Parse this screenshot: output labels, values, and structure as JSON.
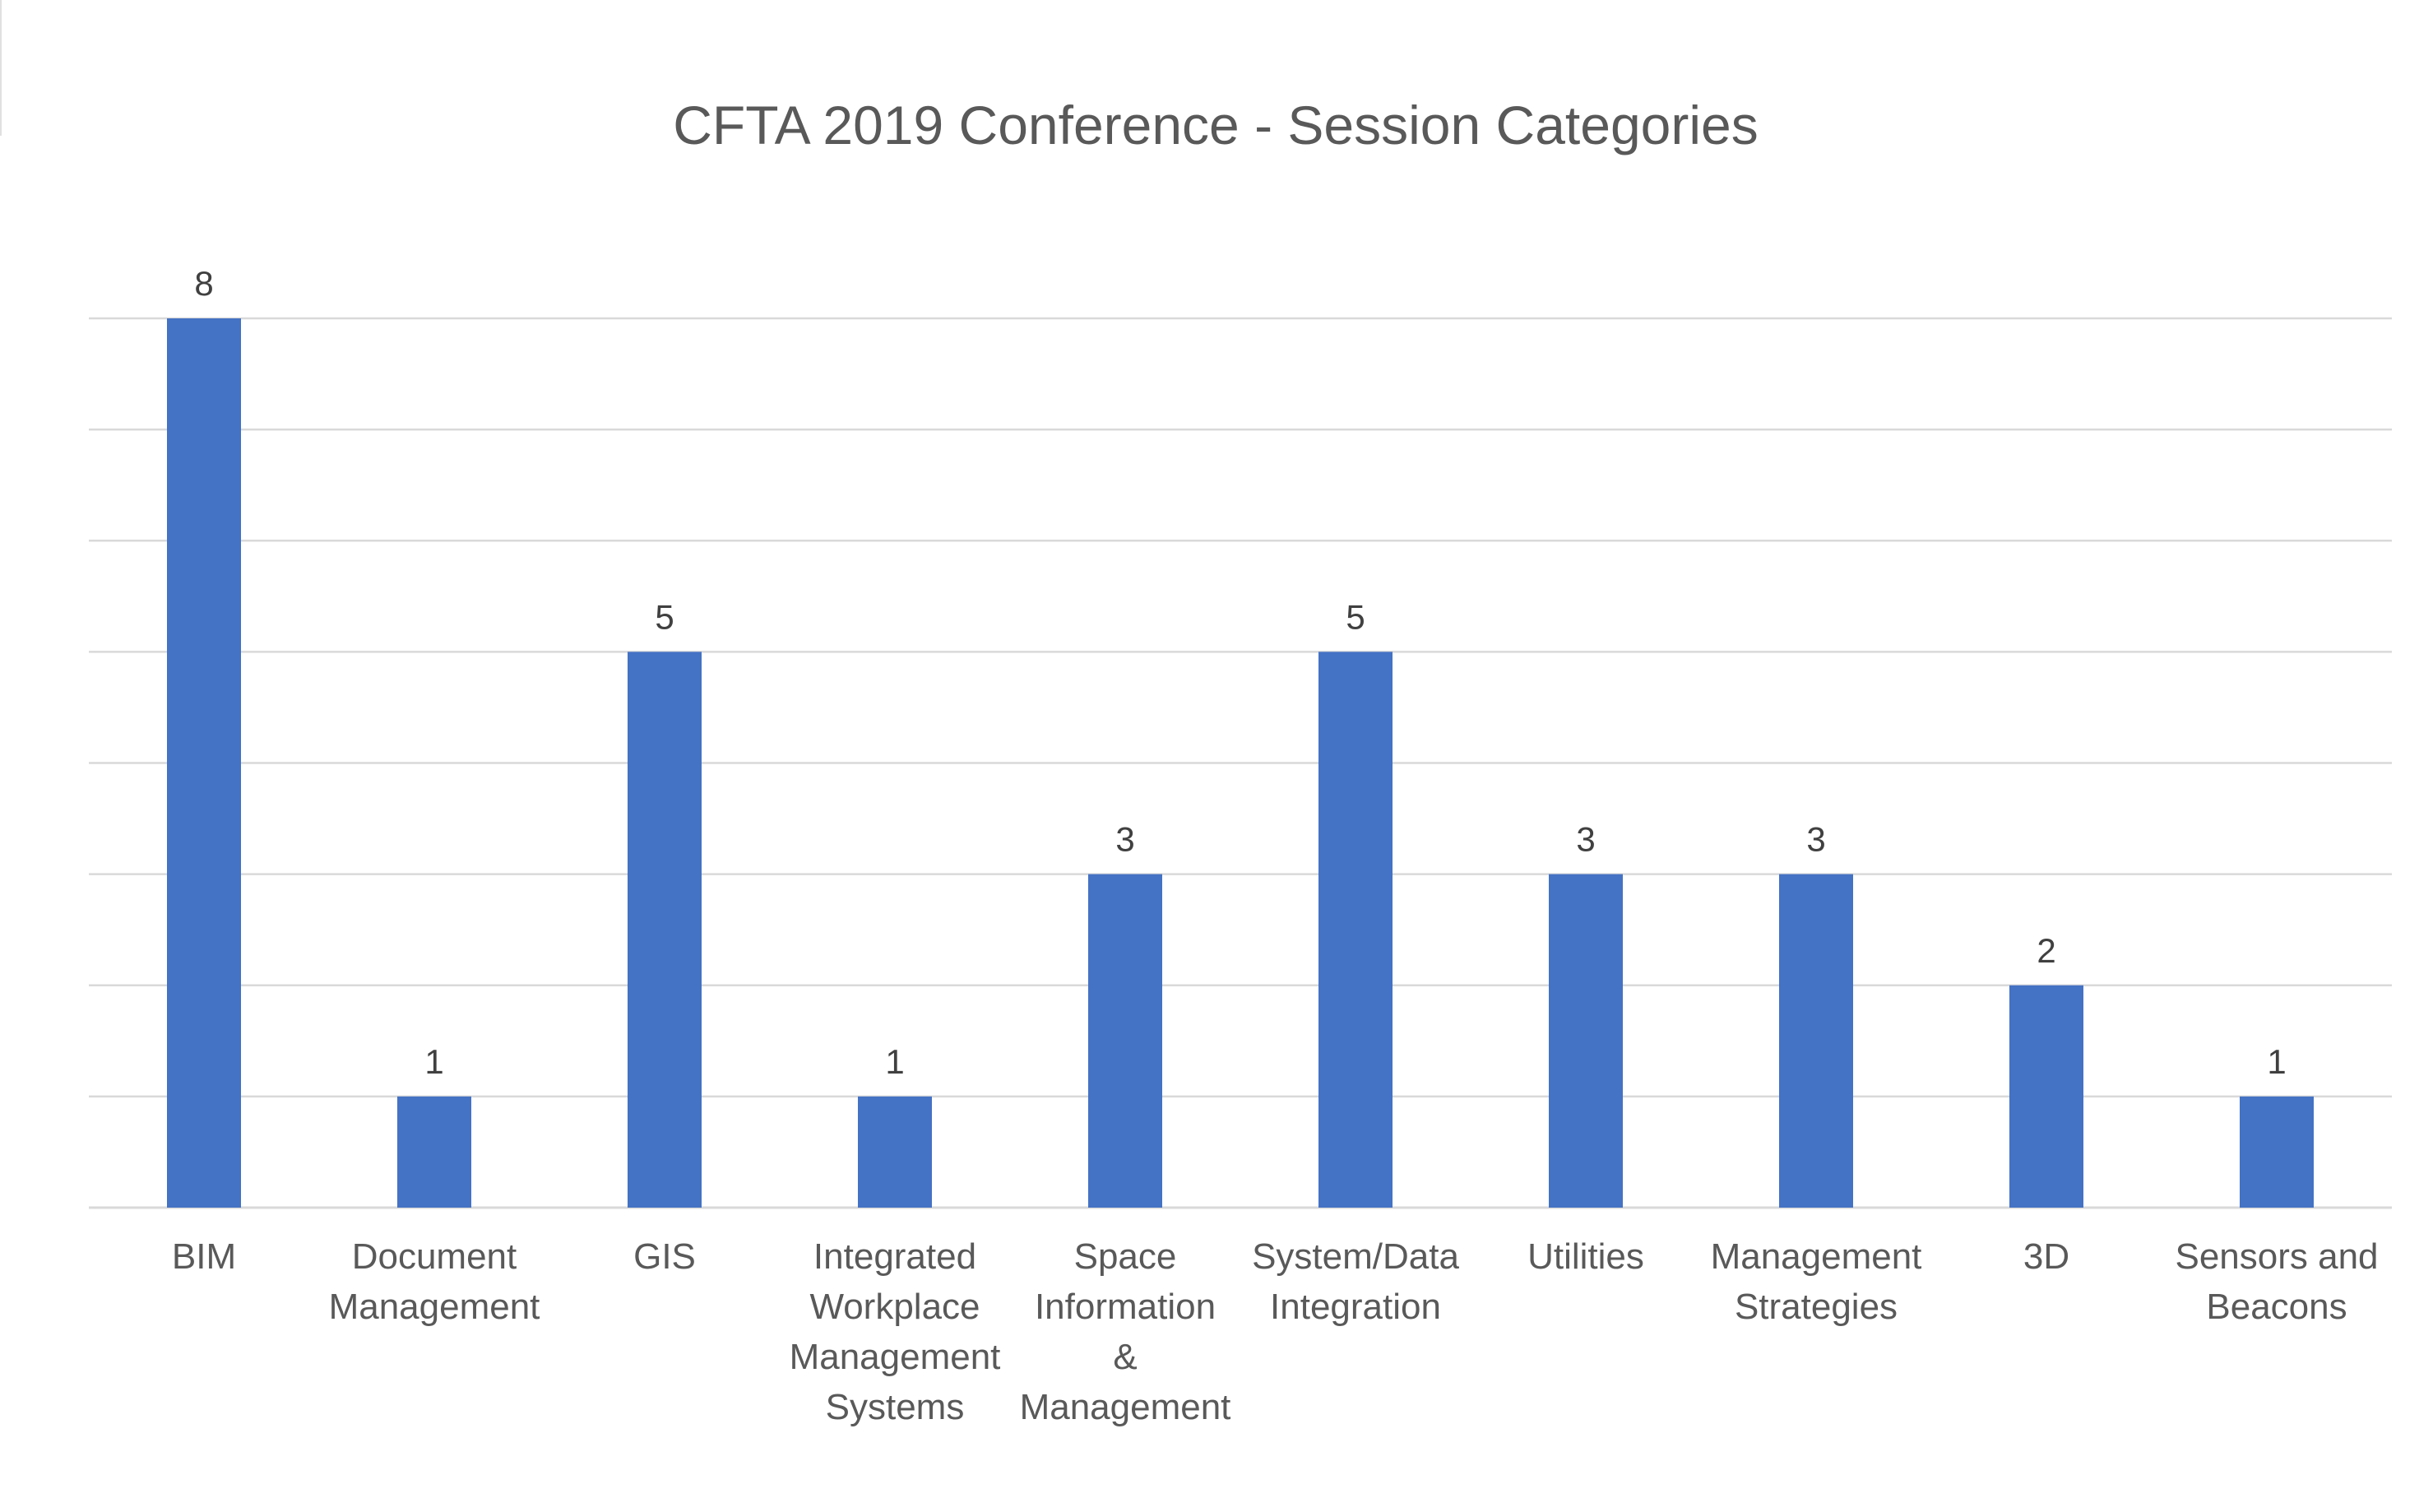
{
  "chart_data": {
    "type": "bar",
    "title": "CFTA 2019 Conference - Session Categories",
    "xlabel": "",
    "ylabel": "",
    "categories": [
      [
        "BIM"
      ],
      [
        "Document",
        "Management"
      ],
      [
        "GIS"
      ],
      [
        "Integrated",
        "Workplace",
        "Management",
        "Systems"
      ],
      [
        "Space",
        "Information",
        "&",
        "Management"
      ],
      [
        "System/Data",
        "Integration"
      ],
      [
        "Utilities"
      ],
      [
        "Management",
        "Strategies"
      ],
      [
        "3D"
      ],
      [
        "Sensors and",
        "Beacons"
      ]
    ],
    "values": [
      8,
      1,
      5,
      1,
      3,
      5,
      3,
      3,
      2,
      1
    ],
    "data_labels": [
      "8",
      "1",
      "5",
      "1",
      "3",
      "5",
      "3",
      "3",
      "2",
      "1"
    ],
    "ylim": [
      0,
      8
    ],
    "grid": true,
    "legend": "none",
    "colors": {
      "bar": "#4472C4"
    }
  }
}
